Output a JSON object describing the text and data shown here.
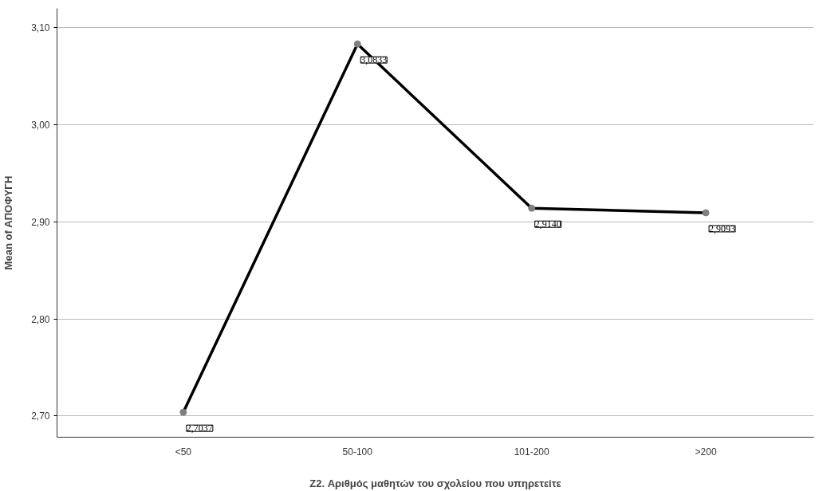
{
  "chart_data": {
    "type": "line",
    "xlabel": "Z2. Αριθμός μαθητών του σχολείου που υπηρετείτε",
    "ylabel": "Mean of ΑΠΟΦΥΓΗ",
    "categories": [
      "<50",
      "50-100",
      "101-200",
      ">200"
    ],
    "series": [
      {
        "color": "#000000",
        "values": [
          2.7037,
          3.0833,
          2.914,
          2.9093
        ],
        "value_labels": [
          "2,7037",
          "3,0833",
          "2,9140",
          "2,9093"
        ]
      }
    ],
    "ylim": [
      2.678,
      3.12
    ],
    "yticks": [
      {
        "value": 2.7,
        "label": "2,70"
      },
      {
        "value": 2.8,
        "label": "2,80"
      },
      {
        "value": 2.9,
        "label": "2,90"
      },
      {
        "value": 3.0,
        "label": "3,00"
      },
      {
        "value": 3.1,
        "label": "3,10"
      }
    ],
    "grid": "y",
    "marker": "circle",
    "line_style": "solid"
  }
}
